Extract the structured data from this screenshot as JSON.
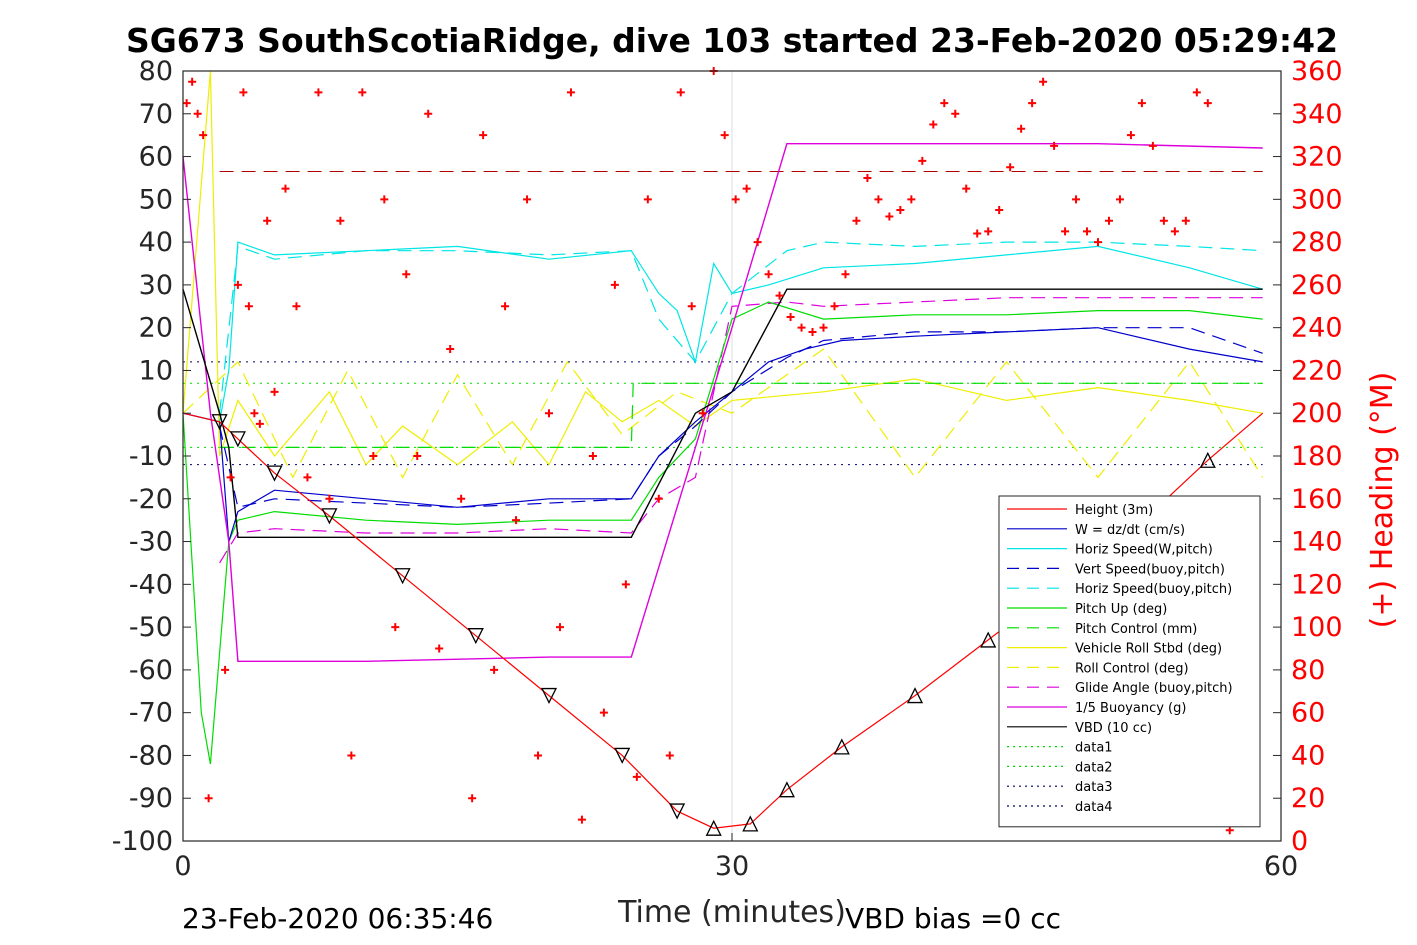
{
  "chart_data": {
    "type": "line",
    "title": "SG673 SouthScotiaRidge, dive 103 started 23-Feb-2020 05:29:42",
    "xlabel": "Time (minutes)",
    "ylabel_right": "(+) Heading (°M)",
    "xlim": [
      0,
      60
    ],
    "ylim_left": [
      -100,
      80
    ],
    "ylim_right": [
      0,
      360
    ],
    "xticks": [
      "0",
      "30",
      "60"
    ],
    "yticks_left": [
      "80",
      "70",
      "60",
      "50",
      "40",
      "30",
      "20",
      "10",
      "0",
      "-10",
      "-20",
      "-30",
      "-40",
      "-50",
      "-60",
      "-70",
      "-80",
      "-90",
      "-100"
    ],
    "yticks_right": [
      "360",
      "340",
      "320",
      "300",
      "280",
      "260",
      "240",
      "220",
      "200",
      "180",
      "160",
      "140",
      "120",
      "100",
      "80",
      "60",
      "40",
      "20",
      "0"
    ],
    "grid_x": [
      30
    ],
    "footer_left": "23-Feb-2020 06:35:46",
    "footer_right": "VBD bias =0 cc",
    "legend_position": "lower-right",
    "legend": [
      {
        "name": "Height (3m)",
        "color": "#ff0000",
        "dash": "solid"
      },
      {
        "name": "W = dz/dt (cm/s)",
        "color": "#0000cc",
        "dash": "solid"
      },
      {
        "name": "Horiz Speed(W,pitch)",
        "color": "#00e5e5",
        "dash": "solid"
      },
      {
        "name": "Vert Speed(buoy,pitch)",
        "color": "#0000cc",
        "dash": "dash"
      },
      {
        "name": "Horiz Speed(buoy,pitch)",
        "color": "#00e5e5",
        "dash": "dash"
      },
      {
        "name": "Pitch Up (deg)",
        "color": "#00dd00",
        "dash": "solid"
      },
      {
        "name": "Pitch Control (mm)",
        "color": "#00dd00",
        "dash": "dash"
      },
      {
        "name": "Vehicle Roll Stbd (deg)",
        "color": "#eeee00",
        "dash": "solid"
      },
      {
        "name": "Roll Control (deg)",
        "color": "#eeee00",
        "dash": "dash"
      },
      {
        "name": "Glide Angle (buoy,pitch)",
        "color": "#dd00dd",
        "dash": "dash"
      },
      {
        "name": "1/5 Buoyancy (g)",
        "color": "#dd00dd",
        "dash": "solid"
      },
      {
        "name": "VBD (10 cc)",
        "color": "#000000",
        "dash": "solid"
      },
      {
        "name": "data1",
        "color": "#00dd00",
        "dash": "dot"
      },
      {
        "name": "data2",
        "color": "#00dd00",
        "dash": "dot"
      },
      {
        "name": "data3",
        "color": "#000066",
        "dash": "dot"
      },
      {
        "name": "data4",
        "color": "#000066",
        "dash": "dot"
      }
    ],
    "series": [
      {
        "key": "height",
        "axis": "left",
        "x": [
          0,
          2,
          3,
          5,
          8,
          12,
          16,
          20,
          24,
          27,
          29,
          31,
          33,
          36,
          40,
          44,
          48,
          52,
          56,
          59
        ],
        "y": [
          0,
          -2,
          -6,
          -14,
          -24,
          -38,
          -52,
          -66,
          -80,
          -93,
          -97,
          -96,
          -88,
          -78,
          -66,
          -53,
          -40,
          -27,
          -11,
          0
        ]
      },
      {
        "key": "w",
        "axis": "left",
        "x": [
          0,
          2,
          2.5,
          3,
          5,
          10,
          15,
          20,
          24.5,
          26,
          28,
          30,
          32,
          34,
          36,
          40,
          45,
          50,
          55,
          59
        ],
        "y": [
          0,
          -2,
          -30,
          -23,
          -18,
          -20,
          -22,
          -20,
          -20,
          -10,
          -2,
          5,
          12,
          15,
          17,
          18,
          19,
          20,
          15,
          12
        ]
      },
      {
        "key": "horiz_speed_w",
        "axis": "left",
        "x": [
          0,
          2,
          2.5,
          3,
          5,
          10,
          15,
          20,
          24.5,
          26,
          27,
          28,
          29,
          30,
          32,
          35,
          40,
          45,
          50,
          55,
          59
        ],
        "y": [
          0,
          -2,
          10,
          40,
          37,
          38,
          39,
          36,
          38,
          28,
          24,
          12,
          35,
          28,
          30,
          34,
          35,
          37,
          39,
          34,
          29
        ]
      },
      {
        "key": "vert_speed_buoy",
        "axis": "left",
        "x": [
          2,
          3,
          5,
          10,
          15,
          20,
          24.5,
          26,
          28,
          30,
          33,
          35,
          40,
          45,
          50,
          55,
          59
        ],
        "y": [
          -3,
          -22,
          -20,
          -21,
          -22,
          -21,
          -20,
          -10,
          -3,
          5,
          13,
          17,
          19,
          19,
          20,
          20,
          14
        ]
      },
      {
        "key": "horiz_speed_buoy",
        "axis": "left",
        "x": [
          2,
          3,
          5,
          10,
          15,
          20,
          24.5,
          26,
          28,
          30,
          33,
          35,
          40,
          45,
          50,
          55,
          59
        ],
        "y": [
          0,
          39,
          36,
          38,
          38,
          37,
          38,
          22,
          12,
          28,
          38,
          40,
          39,
          40,
          40,
          39,
          38
        ]
      },
      {
        "key": "pitch_up",
        "axis": "left",
        "x": [
          0,
          1,
          1.5,
          2.5,
          3,
          5,
          10,
          15,
          20,
          24.5,
          26,
          28,
          30,
          32,
          35,
          40,
          45,
          50,
          55,
          59
        ],
        "y": [
          0,
          -70,
          -82,
          -30,
          -25,
          -23,
          -25,
          -26,
          -25,
          -25,
          -15,
          -6,
          22,
          26,
          22,
          23,
          23,
          24,
          24,
          22
        ]
      },
      {
        "key": "pitch_control",
        "axis": "left",
        "x": [
          2,
          24.5,
          24.6,
          59
        ],
        "y": [
          -8,
          -8,
          7,
          7
        ]
      },
      {
        "key": "vehicle_roll",
        "axis": "left",
        "x": [
          0,
          1.5,
          2,
          3,
          5,
          8,
          10,
          12,
          15,
          18,
          20,
          22,
          24,
          26,
          28,
          30,
          35,
          40,
          45,
          50,
          55,
          59
        ],
        "y": [
          0,
          80,
          -10,
          3,
          -10,
          5,
          -12,
          -3,
          -12,
          -2,
          -12,
          5,
          -2,
          3,
          -3,
          3,
          5,
          8,
          3,
          6,
          3,
          0
        ]
      },
      {
        "key": "roll_control",
        "axis": "left",
        "x": [
          0,
          3,
          6,
          9,
          12,
          15,
          18,
          21,
          24,
          27,
          30,
          35,
          40,
          45,
          50,
          55,
          59
        ],
        "y": [
          0,
          12,
          -15,
          10,
          -15,
          9,
          -12,
          12,
          -5,
          5,
          0,
          15,
          -15,
          12,
          -15,
          12,
          -15
        ]
      },
      {
        "key": "glide_angle",
        "axis": "left",
        "x": [
          2,
          3,
          5,
          10,
          15,
          20,
          24.5,
          26,
          28,
          30,
          33,
          35,
          40,
          45,
          50,
          55,
          59
        ],
        "y": [
          -35,
          -28,
          -27,
          -28,
          -28,
          -27,
          -28,
          -20,
          -15,
          25,
          26,
          25,
          26,
          27,
          27,
          27,
          27
        ]
      },
      {
        "key": "buoyancy",
        "axis": "left",
        "x": [
          0,
          1.5,
          2.5,
          3,
          10,
          20,
          24.5,
          30,
          33,
          40,
          50,
          59
        ],
        "y": [
          60,
          0,
          -30,
          -58,
          -58,
          -57,
          -57,
          20,
          63,
          63,
          63,
          62
        ]
      },
      {
        "key": "vbd",
        "axis": "left",
        "x": [
          0,
          2,
          2.5,
          3,
          10,
          20,
          24.5,
          28,
          30,
          33,
          40,
          50,
          59
        ],
        "y": [
          29,
          0,
          -8,
          -29,
          -29,
          -29,
          -29,
          0,
          5,
          29,
          29,
          29,
          29
        ]
      },
      {
        "key": "data1",
        "axis": "left",
        "x": [
          0,
          59
        ],
        "y": [
          -8,
          -8
        ]
      },
      {
        "key": "data2",
        "axis": "left",
        "x": [
          0,
          59
        ],
        "y": [
          7,
          7
        ]
      },
      {
        "key": "data3",
        "axis": "left",
        "x": [
          0,
          59
        ],
        "y": [
          12,
          12
        ]
      },
      {
        "key": "data4",
        "axis": "left",
        "x": [
          0,
          59
        ],
        "y": [
          -12,
          -12
        ]
      },
      {
        "key": "red_dashed_ref",
        "axis": "right",
        "x": [
          2,
          59
        ],
        "y": [
          313,
          313
        ]
      }
    ],
    "heading": {
      "axis": "right",
      "marker": "+",
      "color": "#ff0000",
      "x": [
        0.2,
        0.5,
        0.8,
        1.1,
        1.4,
        2.3,
        2.6,
        3.0,
        3.3,
        3.6,
        3.9,
        4.2,
        4.6,
        5.0,
        5.6,
        6.2,
        6.8,
        7.4,
        8.0,
        8.6,
        9.2,
        9.8,
        10.4,
        11.0,
        11.6,
        12.2,
        12.8,
        13.4,
        14.0,
        14.6,
        15.2,
        15.8,
        16.4,
        17.0,
        17.6,
        18.2,
        18.8,
        19.4,
        20.0,
        20.6,
        21.2,
        21.8,
        22.4,
        23.0,
        23.6,
        24.2,
        24.8,
        25.4,
        26.0,
        26.6,
        27.2,
        27.8,
        28.4,
        29.0,
        29.6,
        30.2,
        30.8,
        31.4,
        32.0,
        32.6,
        33.2,
        33.8,
        34.4,
        35.0,
        35.6,
        36.2,
        36.8,
        37.4,
        38.0,
        38.6,
        39.2,
        39.8,
        40.4,
        41.0,
        41.6,
        42.2,
        42.8,
        43.4,
        44.0,
        44.6,
        45.2,
        45.8,
        46.4,
        47.0,
        47.6,
        48.2,
        48.8,
        49.4,
        50.0,
        50.6,
        51.2,
        51.8,
        52.4,
        53.0,
        53.6,
        54.2,
        54.8,
        55.4,
        56.0,
        56.6,
        57.2,
        57.8,
        58.4
      ],
      "y": [
        345,
        355,
        340,
        330,
        20,
        80,
        170,
        260,
        350,
        250,
        200,
        195,
        290,
        210,
        305,
        250,
        170,
        350,
        160,
        290,
        40,
        350,
        180,
        300,
        100,
        265,
        180,
        340,
        90,
        230,
        160,
        20,
        330,
        80,
        250,
        150,
        300,
        40,
        200,
        100,
        350,
        10,
        180,
        60,
        260,
        120,
        30,
        300,
        160,
        40,
        350,
        250,
        200,
        360,
        330,
        300,
        305,
        280,
        265,
        255,
        245,
        240,
        238,
        240,
        250,
        265,
        290,
        310,
        300,
        292,
        295,
        300,
        318,
        335,
        345,
        340,
        305,
        284,
        285,
        295,
        315,
        333,
        345,
        355,
        325,
        285,
        300,
        285,
        280,
        290,
        300,
        330,
        345,
        325,
        290,
        285,
        290,
        350,
        345,
        20,
        5,
        10,
        15
      ]
    }
  }
}
